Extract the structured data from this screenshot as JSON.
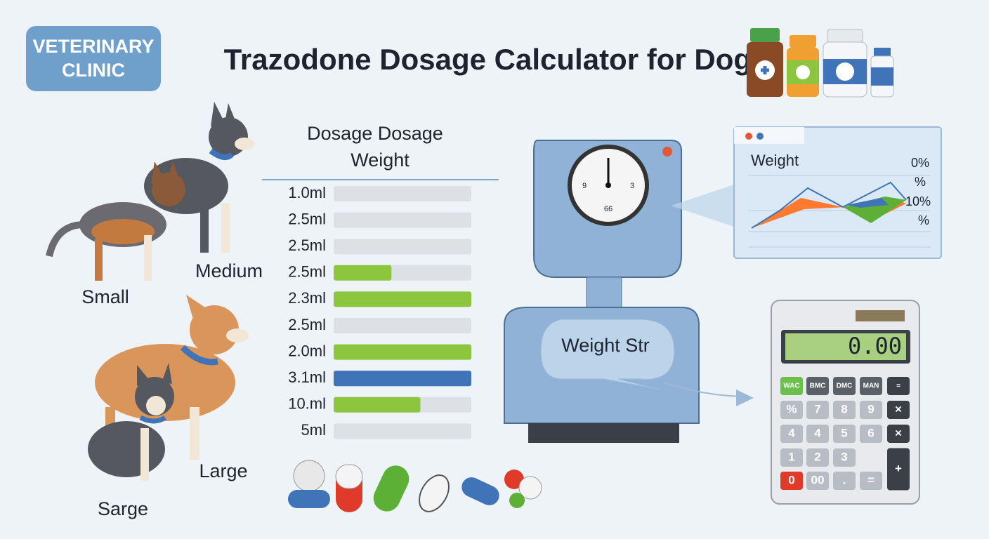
{
  "badge": {
    "lines": [
      "VETERINARY",
      "CLINIC"
    ]
  },
  "title": "Trazodone Dosage Calculator for Dogs",
  "dogs": {
    "top_left": "Small",
    "top_right": "Medium",
    "bottom_right": "Large",
    "bottom_left": "Sarge"
  },
  "dosage_table": {
    "header": [
      "Dosage Dosage",
      "Weight"
    ],
    "rows": [
      {
        "label": "1.0ml",
        "fill": 0,
        "color": "#8cc63f"
      },
      {
        "label": "2.5ml",
        "fill": 0,
        "color": "#8cc63f"
      },
      {
        "label": "2.5ml",
        "fill": 0,
        "color": "#8cc63f"
      },
      {
        "label": "2.5ml",
        "fill": 42,
        "color": "#8cc63f"
      },
      {
        "label": "2.3ml",
        "fill": 100,
        "color": "#8cc63f"
      },
      {
        "label": "2.5ml",
        "fill": 0,
        "color": "#8cc63f"
      },
      {
        "label": "2.0ml",
        "fill": 100,
        "color": "#8cc63f"
      },
      {
        "label": "3.1ml",
        "fill": 100,
        "color": "#3f75b8"
      },
      {
        "label": "10.ml",
        "fill": 63,
        "color": "#8cc63f"
      },
      {
        "label": "5ml",
        "fill": 0,
        "color": "#8cc63f"
      }
    ]
  },
  "chart_window": {
    "title": "Weight",
    "right_labels": [
      "0%",
      "%",
      "10%",
      "%"
    ]
  },
  "scale": {
    "dial": [
      "9",
      "3",
      "66"
    ],
    "bubble": "Weight Str"
  },
  "calculator": {
    "display": "0.00",
    "rows": [
      [
        "WAC",
        "BMC",
        "DMC",
        "MAN",
        "="
      ],
      [
        "%",
        "7",
        "8",
        "9",
        "×"
      ],
      [
        "4",
        "4",
        "5",
        "6",
        "×"
      ],
      [
        "1",
        "2",
        "3",
        "+"
      ],
      [
        "0",
        "00",
        ".",
        "="
      ]
    ]
  }
}
